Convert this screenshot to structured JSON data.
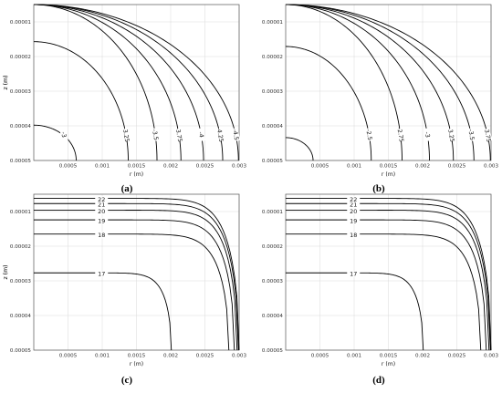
{
  "chart_data": [
    {
      "type": "contour",
      "caption": "(a)",
      "xlabel": "r (m)",
      "ylabel": "z (m)",
      "xlim": [
        0,
        0.003
      ],
      "ylim": [
        5e-06,
        5e-05
      ],
      "xticks": [
        "0.0005",
        "0.001",
        "0.0015",
        "0.002",
        "0.0025",
        "0.003"
      ],
      "yticks": [
        "0.00001",
        "0.00002",
        "0.00003",
        "0.00004",
        "0.00005"
      ],
      "grid": true,
      "levels": [
        {
          "label": "-3",
          "r_bottom": 0.00062,
          "z_top": 3.98e-05
        },
        {
          "label": "-3.25",
          "r_bottom": 0.00138,
          "z_top": 1.57e-05
        },
        {
          "label": "-3.5",
          "r_bottom": 0.0018,
          "z_top": 5e-06
        },
        {
          "label": "-3.75",
          "r_bottom": 0.00215,
          "z_top": 5e-06
        },
        {
          "label": "-4",
          "r_bottom": 0.00248,
          "z_top": 5e-06
        },
        {
          "label": "-4.25",
          "r_bottom": 0.00276,
          "z_top": 5e-06
        },
        {
          "label": "-4.5",
          "r_bottom": 0.00299,
          "z_top": 5e-06
        }
      ]
    },
    {
      "type": "contour",
      "caption": "(b)",
      "xlabel": "r (m)",
      "ylabel": "z (m)",
      "xlim": [
        0,
        0.003
      ],
      "ylim": [
        5e-06,
        5e-05
      ],
      "xticks": [
        "0.0005",
        "0.001",
        "0.0015",
        "0.002",
        "0.0025",
        "0.003"
      ],
      "yticks": [
        "0.00001",
        "0.00002",
        "0.00003",
        "0.00004",
        "0.00005"
      ],
      "grid": true,
      "levels": [
        {
          "label": "",
          "r_bottom": 0.0004,
          "z_top": 4.34e-05
        },
        {
          "label": "-2.5",
          "r_bottom": 0.00125,
          "z_top": 1.71e-05
        },
        {
          "label": "-2.75",
          "r_bottom": 0.0017,
          "z_top": 5e-06
        },
        {
          "label": "-3",
          "r_bottom": 0.0021,
          "z_top": 5e-06
        },
        {
          "label": "-3.25",
          "r_bottom": 0.00245,
          "z_top": 5e-06
        },
        {
          "label": "-3.5",
          "r_bottom": 0.00275,
          "z_top": 5e-06
        },
        {
          "label": "-3.75",
          "r_bottom": 0.00299,
          "z_top": 5e-06
        }
      ]
    },
    {
      "type": "contour",
      "caption": "(c)",
      "xlabel": "r (m)",
      "ylabel": "z (m)",
      "xlim": [
        0,
        0.003
      ],
      "ylim": [
        5e-06,
        5e-05
      ],
      "xticks": [
        "0.0005",
        "0.001",
        "0.0015",
        "0.002",
        "0.0025",
        "0.003"
      ],
      "yticks": [
        "0.00001",
        "0.00002",
        "0.00003",
        "0.00004",
        "0.00005"
      ],
      "grid": true,
      "levels": [
        {
          "label": "17",
          "z_left": 2.77e-05,
          "r_bottom": 0.00201
        },
        {
          "label": "18",
          "z_left": 1.65e-05,
          "r_bottom": 0.00285
        },
        {
          "label": "19",
          "z_left": 1.24e-05,
          "r_bottom": 0.00293
        },
        {
          "label": "20",
          "z_left": 9.6e-06,
          "r_bottom": 0.00297
        },
        {
          "label": "21",
          "z_left": 7.7e-06,
          "r_bottom": 0.00299
        },
        {
          "label": "22",
          "z_left": 6.2e-06,
          "r_bottom": 0.003
        }
      ]
    },
    {
      "type": "contour",
      "caption": "(d)",
      "xlabel": "r (m)",
      "ylabel": "z (m)",
      "xlim": [
        0,
        0.003
      ],
      "ylim": [
        5e-06,
        5e-05
      ],
      "xticks": [
        "0.0005",
        "0.001",
        "0.0015",
        "0.002",
        "0.0025",
        "0.003"
      ],
      "yticks": [
        "0.00001",
        "0.00002",
        "0.00003",
        "0.00004",
        "0.00005"
      ],
      "grid": true,
      "levels": [
        {
          "label": "17",
          "z_left": 2.77e-05,
          "r_bottom": 0.00201
        },
        {
          "label": "18",
          "z_left": 1.65e-05,
          "r_bottom": 0.00285
        },
        {
          "label": "19",
          "z_left": 1.24e-05,
          "r_bottom": 0.00293
        },
        {
          "label": "20",
          "z_left": 9.6e-06,
          "r_bottom": 0.00297
        },
        {
          "label": "21",
          "z_left": 7.7e-06,
          "r_bottom": 0.00299
        },
        {
          "label": "22",
          "z_left": 6.2e-06,
          "r_bottom": 0.003
        }
      ]
    }
  ]
}
